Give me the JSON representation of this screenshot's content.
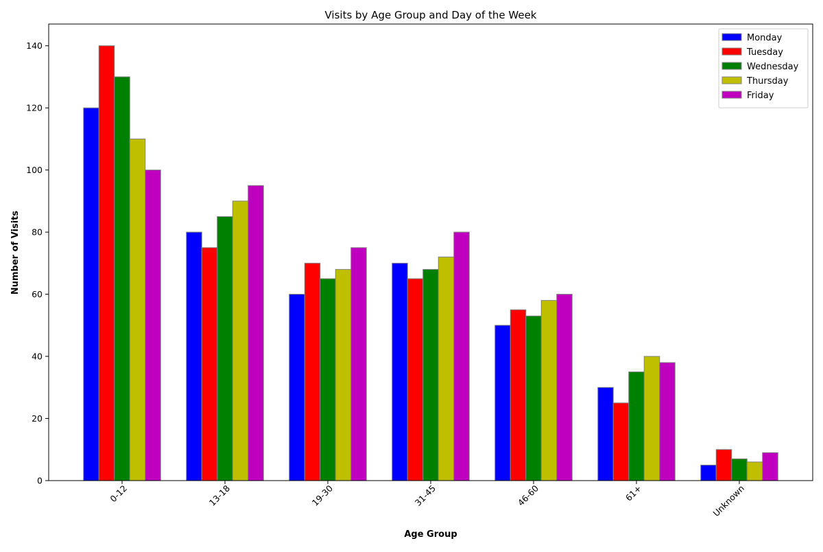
{
  "chart_data": {
    "type": "bar",
    "title": "Visits by Age Group and Day of the Week",
    "xlabel": "Age Group",
    "ylabel": "Number of Visits",
    "categories": [
      "0-12",
      "13-18",
      "19-30",
      "31-45",
      "46-60",
      "61+",
      "Unknown"
    ],
    "series": [
      {
        "name": "Monday",
        "color": "#0000ff",
        "values": [
          120,
          80,
          60,
          70,
          50,
          30,
          5
        ]
      },
      {
        "name": "Tuesday",
        "color": "#ff0000",
        "values": [
          140,
          75,
          70,
          65,
          55,
          25,
          10
        ]
      },
      {
        "name": "Wednesday",
        "color": "#008000",
        "values": [
          130,
          85,
          65,
          68,
          53,
          35,
          7
        ]
      },
      {
        "name": "Thursday",
        "color": "#bfbf00",
        "values": [
          110,
          90,
          68,
          72,
          58,
          40,
          6
        ]
      },
      {
        "name": "Friday",
        "color": "#bf00bf",
        "values": [
          100,
          95,
          75,
          80,
          60,
          38,
          9
        ]
      }
    ],
    "ylim": [
      0,
      147
    ],
    "yticks": [
      0,
      20,
      40,
      60,
      80,
      100,
      120,
      140
    ],
    "grid": false,
    "legend": "top-right",
    "bar_edge_color": "#808080"
  }
}
